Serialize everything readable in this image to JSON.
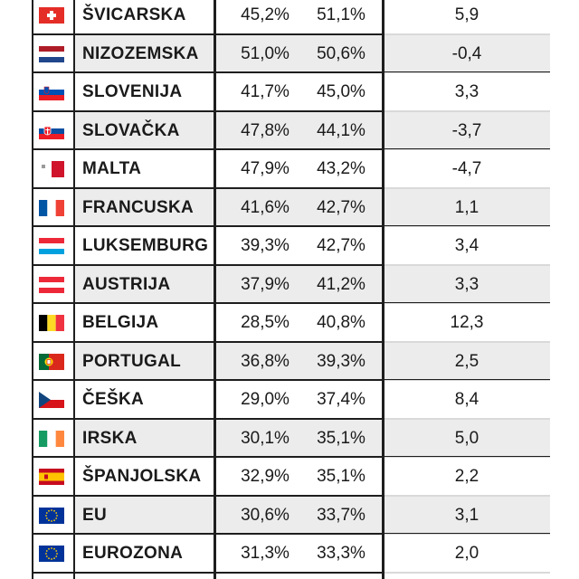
{
  "rows": [
    {
      "flag": "ch",
      "country": "ŠVICARSKA",
      "v1": "45,2%",
      "v2": "51,1%",
      "diff": "5,9",
      "alt": false
    },
    {
      "flag": "nl",
      "country": "NIZOZEMSKA",
      "v1": "51,0%",
      "v2": "50,6%",
      "diff": "-0,4",
      "alt": true
    },
    {
      "flag": "si",
      "country": "SLOVENIJA",
      "v1": "41,7%",
      "v2": "45,0%",
      "diff": "3,3",
      "alt": false
    },
    {
      "flag": "sk",
      "country": "SLOVAČKA",
      "v1": "47,8%",
      "v2": "44,1%",
      "diff": "-3,7",
      "alt": true
    },
    {
      "flag": "mt",
      "country": "MALTA",
      "v1": "47,9%",
      "v2": "43,2%",
      "diff": "-4,7",
      "alt": false
    },
    {
      "flag": "fr",
      "country": "FRANCUSKA",
      "v1": "41,6%",
      "v2": "42,7%",
      "diff": "1,1",
      "alt": true
    },
    {
      "flag": "lu",
      "country": "LUKSEMBURG",
      "v1": "39,3%",
      "v2": "42,7%",
      "diff": "3,4",
      "alt": false
    },
    {
      "flag": "at",
      "country": "AUSTRIJA",
      "v1": "37,9%",
      "v2": "41,2%",
      "diff": "3,3",
      "alt": true
    },
    {
      "flag": "be",
      "country": "BELGIJA",
      "v1": "28,5%",
      "v2": "40,8%",
      "diff": "12,3",
      "alt": false
    },
    {
      "flag": "pt",
      "country": "PORTUGAL",
      "v1": "36,8%",
      "v2": "39,3%",
      "diff": "2,5",
      "alt": true
    },
    {
      "flag": "cz",
      "country": "ČEŠKA",
      "v1": "29,0%",
      "v2": "37,4%",
      "diff": "8,4",
      "alt": false
    },
    {
      "flag": "ie",
      "country": "IRSKA",
      "v1": "30,1%",
      "v2": "35,1%",
      "diff": "5,0",
      "alt": true
    },
    {
      "flag": "es",
      "country": "ŠPANJOLSKA",
      "v1": "32,9%",
      "v2": "35,1%",
      "diff": "2,2",
      "alt": false
    },
    {
      "flag": "eu",
      "country": "EU",
      "v1": "30,6%",
      "v2": "33,7%",
      "diff": "3,1",
      "alt": true
    },
    {
      "flag": "eu",
      "country": "EUROZONA",
      "v1": "31,3%",
      "v2": "33,3%",
      "diff": "2,0",
      "alt": false
    }
  ],
  "flag_colors": {
    "ch": [
      "#e52d27",
      "#ffffff"
    ],
    "nl": [
      "#ae1c28",
      "#ffffff",
      "#21468b"
    ],
    "si": [
      "#ffffff",
      "#0050b5",
      "#ed1c24"
    ],
    "sk": [
      "#ffffff",
      "#0b4ea2",
      "#ee1c25"
    ],
    "mt": [
      "#ffffff",
      "#cf142b"
    ],
    "fr": [
      "#0055a4",
      "#ffffff",
      "#ef4135"
    ],
    "lu": [
      "#ed2939",
      "#ffffff",
      "#00a1de"
    ],
    "at": [
      "#ed2939",
      "#ffffff",
      "#ed2939"
    ],
    "be": [
      "#000000",
      "#fdda24",
      "#ef3340"
    ],
    "pt": [
      "#046a38",
      "#da291c",
      "#ffe000"
    ],
    "cz": [
      "#ffffff",
      "#d7141a",
      "#11457e"
    ],
    "ie": [
      "#169b62",
      "#ffffff",
      "#ff883e"
    ],
    "es": [
      "#c60b1e",
      "#ffc400",
      "#c60b1e"
    ],
    "eu": [
      "#003399",
      "#ffcc00"
    ]
  }
}
